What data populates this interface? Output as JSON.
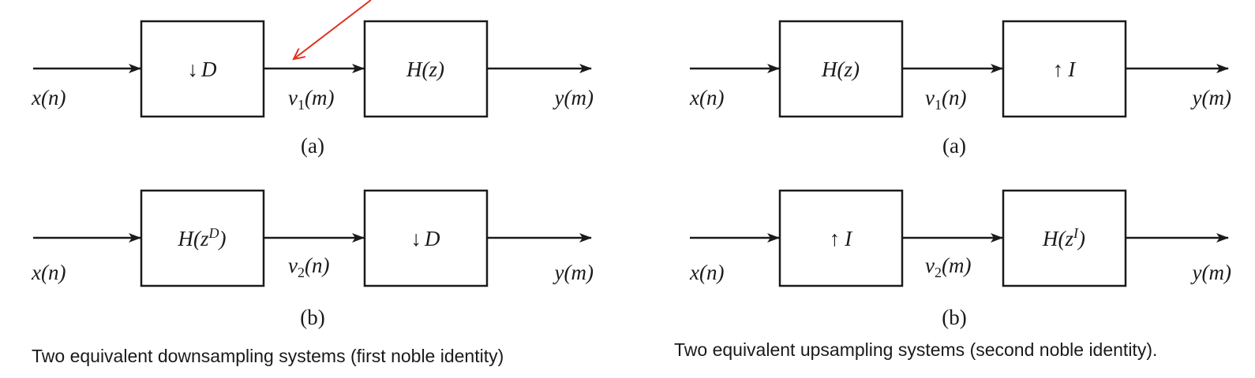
{
  "left": {
    "caption": "Two equivalent downsampling systems (first noble identity)",
    "a": {
      "tag": "(a)",
      "input": "x(n)",
      "block1": {
        "op": "↓",
        "sym": "D"
      },
      "mid": {
        "var": "v",
        "sub": "1",
        "arg": "(m)"
      },
      "block2": {
        "text": "H(z)"
      },
      "output": "y(m)"
    },
    "b": {
      "tag": "(b)",
      "input": "x(n)",
      "block1": {
        "base": "H(z",
        "sup": "D",
        "close": ")"
      },
      "mid": {
        "var": "v",
        "sub": "2",
        "arg": "(n)"
      },
      "block2": {
        "op": "↓",
        "sym": "D"
      },
      "output": "y(m)"
    }
  },
  "right": {
    "caption": "Two equivalent upsampling systems (second noble identity).",
    "a": {
      "tag": "(a)",
      "input": "x(n)",
      "block1": {
        "text": "H(z)"
      },
      "mid": {
        "var": "v",
        "sub": "1",
        "arg": "(n)"
      },
      "block2": {
        "op": "↑",
        "sym": "I"
      },
      "output": "y(m)"
    },
    "b": {
      "tag": "(b)",
      "input": "x(n)",
      "block1": {
        "op": "↑",
        "sym": "I"
      },
      "mid": {
        "var": "v",
        "sub": "2",
        "arg": "(m)"
      },
      "block2": {
        "base": "H(z",
        "sup": "I",
        "close": ")"
      },
      "output": "y(m)"
    }
  },
  "colors": {
    "ink": "#1a1a1a",
    "annotation": "#e03020"
  },
  "annotation": {
    "shape": "red-arrow",
    "points_to": "v1(m) signal line"
  }
}
